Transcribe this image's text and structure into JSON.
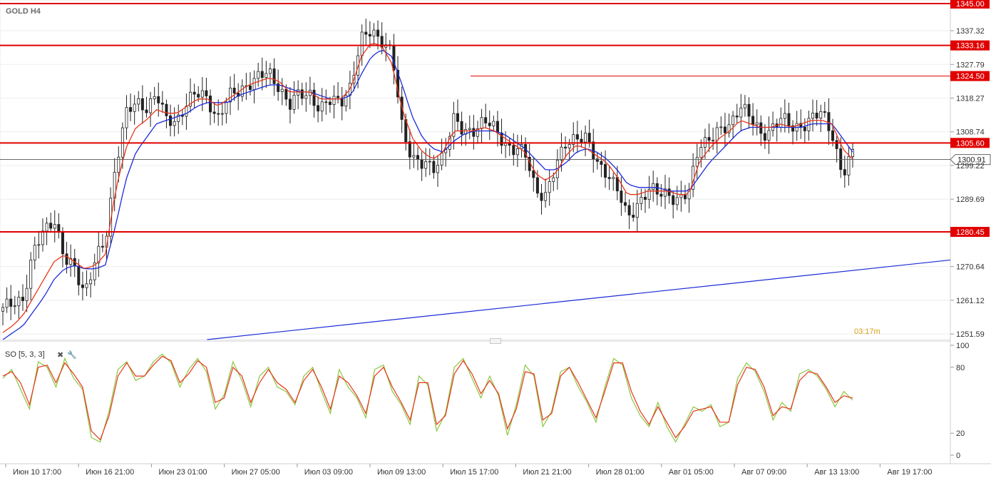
{
  "symbol_label": "GOLD H4",
  "timer": "03:17m",
  "indicator": {
    "label": "SO [5, 3, 3]",
    "close_icon": "close-icon",
    "settings_icon": "wrench-icon"
  },
  "colors": {
    "bull": "#ffffff",
    "bear": "#222222",
    "wick": "#222222",
    "ma_fast": "#e8361c",
    "ma_slow": "#1c2bd8",
    "level_line": "#e00000",
    "level_box": "#e00000",
    "level_text": "#ffffff",
    "trendline": "#1c2bd8",
    "grid": "#eeeeee",
    "so_k": "#8cc63f",
    "so_d": "#e8361c"
  },
  "chart_data": {
    "type": "candlestick",
    "title": "GOLD H4",
    "y_ticks": [
      "1337.32",
      "1327.79",
      "1318.27",
      "1308.74",
      "1299.22",
      "1289.69",
      "1270.64",
      "1261.12",
      "1251.59"
    ],
    "ylim": [
      1250,
      1346
    ],
    "x_labels": [
      "Июн 10 17:00",
      "Июн 16 21:00",
      "Июн 23 01:00",
      "Июн 27 05:00",
      "Июл 03 09:00",
      "Июл 09 13:00",
      "Июл 15 17:00",
      "Июл 21 21:00",
      "Июл 28 01:00",
      "Авг 01 05:00",
      "Авг 07 09:00",
      "Авг 13 13:00",
      "Авг 19 17:00"
    ],
    "current_price": "1300.91",
    "levels": [
      {
        "value": "1345.00"
      },
      {
        "value": "1333.16"
      },
      {
        "value": "1324.50",
        "thin": true
      },
      {
        "value": "1305.60"
      },
      {
        "value": "1280.45"
      }
    ],
    "price_path": [
      1258,
      1261,
      1262,
      1274,
      1281,
      1285,
      1272,
      1270,
      1264,
      1272,
      1277,
      1300,
      1314,
      1316,
      1316,
      1320,
      1311,
      1312,
      1318,
      1319,
      1318,
      1313,
      1318,
      1320,
      1323,
      1324,
      1325,
      1322,
      1316,
      1319,
      1320,
      1315,
      1317,
      1318,
      1322,
      1334,
      1338,
      1335,
      1330,
      1310,
      1302,
      1299,
      1298,
      1303,
      1312,
      1308,
      1310,
      1312,
      1309,
      1306,
      1304,
      1302,
      1293,
      1291,
      1298,
      1306,
      1308,
      1306,
      1300,
      1298,
      1292,
      1284,
      1289,
      1292,
      1291,
      1292,
      1289,
      1291,
      1306,
      1307,
      1308,
      1311,
      1317,
      1312,
      1308,
      1310,
      1312,
      1310,
      1311,
      1312,
      1314,
      1309,
      1296,
      1302
    ],
    "ma_fast": [
      1252,
      1254,
      1257,
      1262,
      1267,
      1272,
      1274,
      1272,
      1270,
      1271,
      1274,
      1292,
      1304,
      1310,
      1312,
      1315,
      1314,
      1314,
      1316,
      1318,
      1318,
      1316,
      1318,
      1320,
      1322,
      1323,
      1324,
      1323,
      1320,
      1320,
      1320,
      1318,
      1318,
      1318,
      1321,
      1330,
      1334,
      1333,
      1328,
      1315,
      1307,
      1303,
      1301,
      1303,
      1309,
      1309,
      1309,
      1310,
      1309,
      1307,
      1305,
      1303,
      1297,
      1295,
      1297,
      1302,
      1305,
      1304,
      1302,
      1300,
      1296,
      1291,
      1291,
      1292,
      1292,
      1292,
      1291,
      1291,
      1300,
      1304,
      1307,
      1309,
      1312,
      1311,
      1310,
      1310,
      1311,
      1310,
      1311,
      1312,
      1312,
      1311,
      1304,
      1301
    ],
    "ma_slow": [
      1250,
      1252,
      1254,
      1258,
      1262,
      1267,
      1270,
      1271,
      1270,
      1270,
      1271,
      1282,
      1295,
      1303,
      1307,
      1311,
      1312,
      1313,
      1314,
      1316,
      1317,
      1317,
      1317,
      1319,
      1320,
      1321,
      1322,
      1322,
      1321,
      1320,
      1320,
      1319,
      1318,
      1318,
      1319,
      1325,
      1330,
      1332,
      1330,
      1322,
      1313,
      1307,
      1304,
      1303,
      1306,
      1308,
      1309,
      1309,
      1309,
      1308,
      1306,
      1304,
      1301,
      1298,
      1298,
      1300,
      1303,
      1304,
      1303,
      1301,
      1298,
      1294,
      1293,
      1293,
      1293,
      1292,
      1292,
      1292,
      1296,
      1300,
      1303,
      1306,
      1309,
      1310,
      1310,
      1310,
      1310,
      1310,
      1310,
      1311,
      1311,
      1311,
      1307,
      1303
    ],
    "trendline": {
      "start": {
        "x": "Июн 23 01:00",
        "y": 1250
      },
      "end": {
        "x": "Авг 19 17:00",
        "y": 1272.5
      }
    },
    "oscillator": {
      "name": "SO [5, 3, 3]",
      "y_ticks": [
        "100",
        "80",
        "20",
        "0"
      ],
      "ylim": [
        0,
        100
      ],
      "k": [
        70,
        78,
        60,
        42,
        85,
        80,
        62,
        88,
        70,
        60,
        16,
        12,
        40,
        78,
        85,
        68,
        72,
        85,
        92,
        84,
        62,
        78,
        88,
        76,
        42,
        55,
        85,
        68,
        44,
        72,
        80,
        62,
        58,
        46,
        72,
        80,
        58,
        38,
        78,
        62,
        52,
        34,
        78,
        82,
        58,
        46,
        28,
        72,
        64,
        22,
        38,
        80,
        88,
        70,
        52,
        72,
        54,
        18,
        46,
        82,
        72,
        26,
        40,
        76,
        80,
        62,
        48,
        30,
        62,
        88,
        82,
        52,
        36,
        26,
        48,
        26,
        12,
        28,
        44,
        40,
        46,
        26,
        30,
        70,
        84,
        76,
        58,
        32,
        48,
        40,
        74,
        78,
        72,
        60,
        44,
        58,
        50
      ],
      "d": [
        72,
        76,
        66,
        46,
        80,
        82,
        66,
        84,
        74,
        62,
        22,
        14,
        36,
        72,
        84,
        72,
        72,
        82,
        90,
        86,
        66,
        74,
        86,
        80,
        48,
        52,
        80,
        72,
        48,
        66,
        78,
        66,
        60,
        48,
        68,
        78,
        62,
        42,
        72,
        66,
        54,
        38,
        72,
        80,
        62,
        48,
        32,
        66,
        66,
        28,
        36,
        74,
        86,
        74,
        56,
        68,
        56,
        24,
        42,
        76,
        74,
        32,
        38,
        72,
        80,
        66,
        50,
        34,
        58,
        84,
        84,
        58,
        40,
        28,
        44,
        30,
        16,
        26,
        40,
        42,
        44,
        30,
        30,
        64,
        80,
        78,
        62,
        36,
        44,
        42,
        68,
        76,
        74,
        62,
        48,
        54,
        52
      ]
    }
  }
}
